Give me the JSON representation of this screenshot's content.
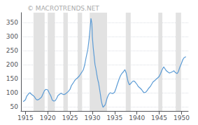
{
  "chart_data": {
    "type": "line",
    "title": "© MACROTRENDS.NET",
    "x": [
      1914.5,
      1915.0,
      1915.3,
      1915.7,
      1916.0,
      1916.3,
      1916.7,
      1917.0,
      1917.3,
      1917.6,
      1918.0,
      1918.3,
      1918.6,
      1919.0,
      1919.3,
      1919.6,
      1920.0,
      1920.3,
      1920.7,
      1921.0,
      1921.4,
      1921.7,
      1922.0,
      1922.3,
      1922.7,
      1923.0,
      1923.3,
      1923.6,
      1924.0,
      1924.3,
      1924.6,
      1925.0,
      1925.3,
      1925.6,
      1926.0,
      1926.3,
      1926.6,
      1927.0,
      1927.3,
      1927.6,
      1928.0,
      1928.3,
      1928.6,
      1929.0,
      1929.3,
      1929.5,
      1929.7,
      1929.9,
      1930.0,
      1930.2,
      1930.4,
      1930.6,
      1930.8,
      1931.0,
      1931.2,
      1931.4,
      1931.6,
      1931.8,
      1932.0,
      1932.2,
      1932.4,
      1932.6,
      1932.8,
      1933.0,
      1933.3,
      1933.6,
      1934.0,
      1934.3,
      1934.6,
      1935.0,
      1935.3,
      1935.6,
      1936.0,
      1936.3,
      1936.6,
      1937.0,
      1937.3,
      1937.6,
      1938.0,
      1938.3,
      1938.6,
      1939.0,
      1939.3,
      1939.6,
      1940.0,
      1940.3,
      1940.6,
      1941.0,
      1941.3,
      1941.6,
      1942.0,
      1942.3,
      1942.6,
      1943.0,
      1943.3,
      1943.6,
      1944.0,
      1944.3,
      1944.6,
      1945.0,
      1945.3,
      1945.6,
      1946.0,
      1946.3,
      1946.6,
      1947.0,
      1947.3,
      1947.6,
      1948.0,
      1948.3,
      1948.6,
      1949.0,
      1949.3,
      1949.6,
      1950.0,
      1950.3,
      1950.6,
      1951.0
    ],
    "values": [
      68,
      75,
      88,
      96,
      100,
      95,
      90,
      86,
      78,
      74,
      76,
      80,
      84,
      98,
      108,
      112,
      110,
      100,
      88,
      74,
      70,
      72,
      80,
      90,
      95,
      98,
      95,
      93,
      96,
      100,
      104,
      112,
      125,
      132,
      142,
      148,
      152,
      158,
      165,
      172,
      182,
      200,
      225,
      255,
      295,
      330,
      365,
      345,
      300,
      260,
      230,
      200,
      185,
      165,
      148,
      135,
      115,
      95,
      72,
      58,
      48,
      52,
      55,
      62,
      80,
      92,
      100,
      98,
      97,
      102,
      115,
      130,
      148,
      160,
      168,
      175,
      182,
      170,
      140,
      128,
      132,
      140,
      142,
      138,
      130,
      122,
      118,
      112,
      105,
      100,
      102,
      108,
      115,
      122,
      130,
      138,
      143,
      148,
      152,
      158,
      168,
      180,
      192,
      185,
      178,
      173,
      170,
      172,
      175,
      178,
      172,
      168,
      175,
      190,
      205,
      218,
      225,
      228
    ],
    "color": "#5b9bd5",
    "recession_bands": {
      "ranges": [
        [
          1916.8,
          1919.3
        ],
        [
          1920.0,
          1921.6
        ],
        [
          1923.5,
          1924.5
        ],
        [
          1926.7,
          1927.7
        ],
        [
          1929.4,
          1933.3
        ],
        [
          1937.5,
          1938.6
        ],
        [
          1944.8,
          1945.7
        ],
        [
          1948.7,
          1949.9
        ]
      ],
      "color": "#e2e2e2"
    },
    "xlim": [
      1914.0,
      1951.5
    ],
    "ylim": [
      35,
      385
    ],
    "xticks": [
      1915,
      1920,
      1925,
      1930,
      1935,
      1940,
      1945,
      1950
    ],
    "yticks": [
      50,
      100,
      150,
      200,
      250,
      300,
      350
    ],
    "grid": true
  }
}
